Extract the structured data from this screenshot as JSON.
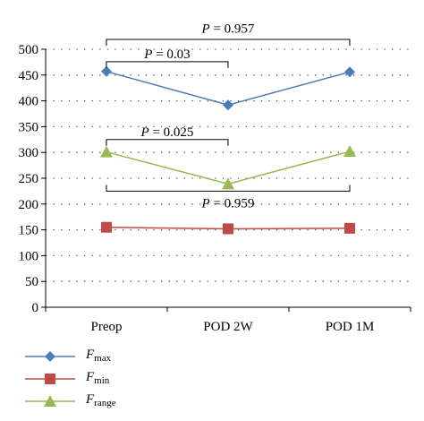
{
  "chart_data": {
    "type": "line",
    "categories": [
      "Preop",
      "POD 2W",
      "POD 1M"
    ],
    "ylim": [
      0,
      500
    ],
    "yticks": [
      0,
      50,
      100,
      150,
      200,
      250,
      300,
      350,
      400,
      450,
      500
    ],
    "grid": "horizontal dotted",
    "legend_position": "bottom-left",
    "series": [
      {
        "symbol": "F",
        "sub": "max",
        "color": "#4a7ebb",
        "marker": "diamond",
        "values": [
          457,
          392,
          456
        ]
      },
      {
        "symbol": "F",
        "sub": "min",
        "color": "#be4b48",
        "marker": "square",
        "values": [
          155,
          152,
          153
        ]
      },
      {
        "symbol": "F",
        "sub": "range",
        "color": "#98b954",
        "marker": "triangle",
        "values": [
          301,
          239,
          302
        ]
      }
    ],
    "annotations": [
      {
        "p_label": "P",
        "text": " = 0.957",
        "from": 0,
        "to": 2,
        "bracket_y": 519,
        "label_y": 541,
        "direction": "down"
      },
      {
        "p_label": "P",
        "text": " = 0.03",
        "from": 0,
        "to": 1,
        "bracket_y": 476,
        "label_y": 491,
        "direction": "down"
      },
      {
        "p_label": "P",
        "text": " = 0.025",
        "from": 0,
        "to": 1,
        "bracket_y": 325,
        "label_y": 340,
        "direction": "down"
      },
      {
        "p_label": "P",
        "text": " = 0.959",
        "from": 0,
        "to": 2,
        "bracket_y": 225,
        "label_y": 202,
        "direction": "up"
      }
    ]
  }
}
